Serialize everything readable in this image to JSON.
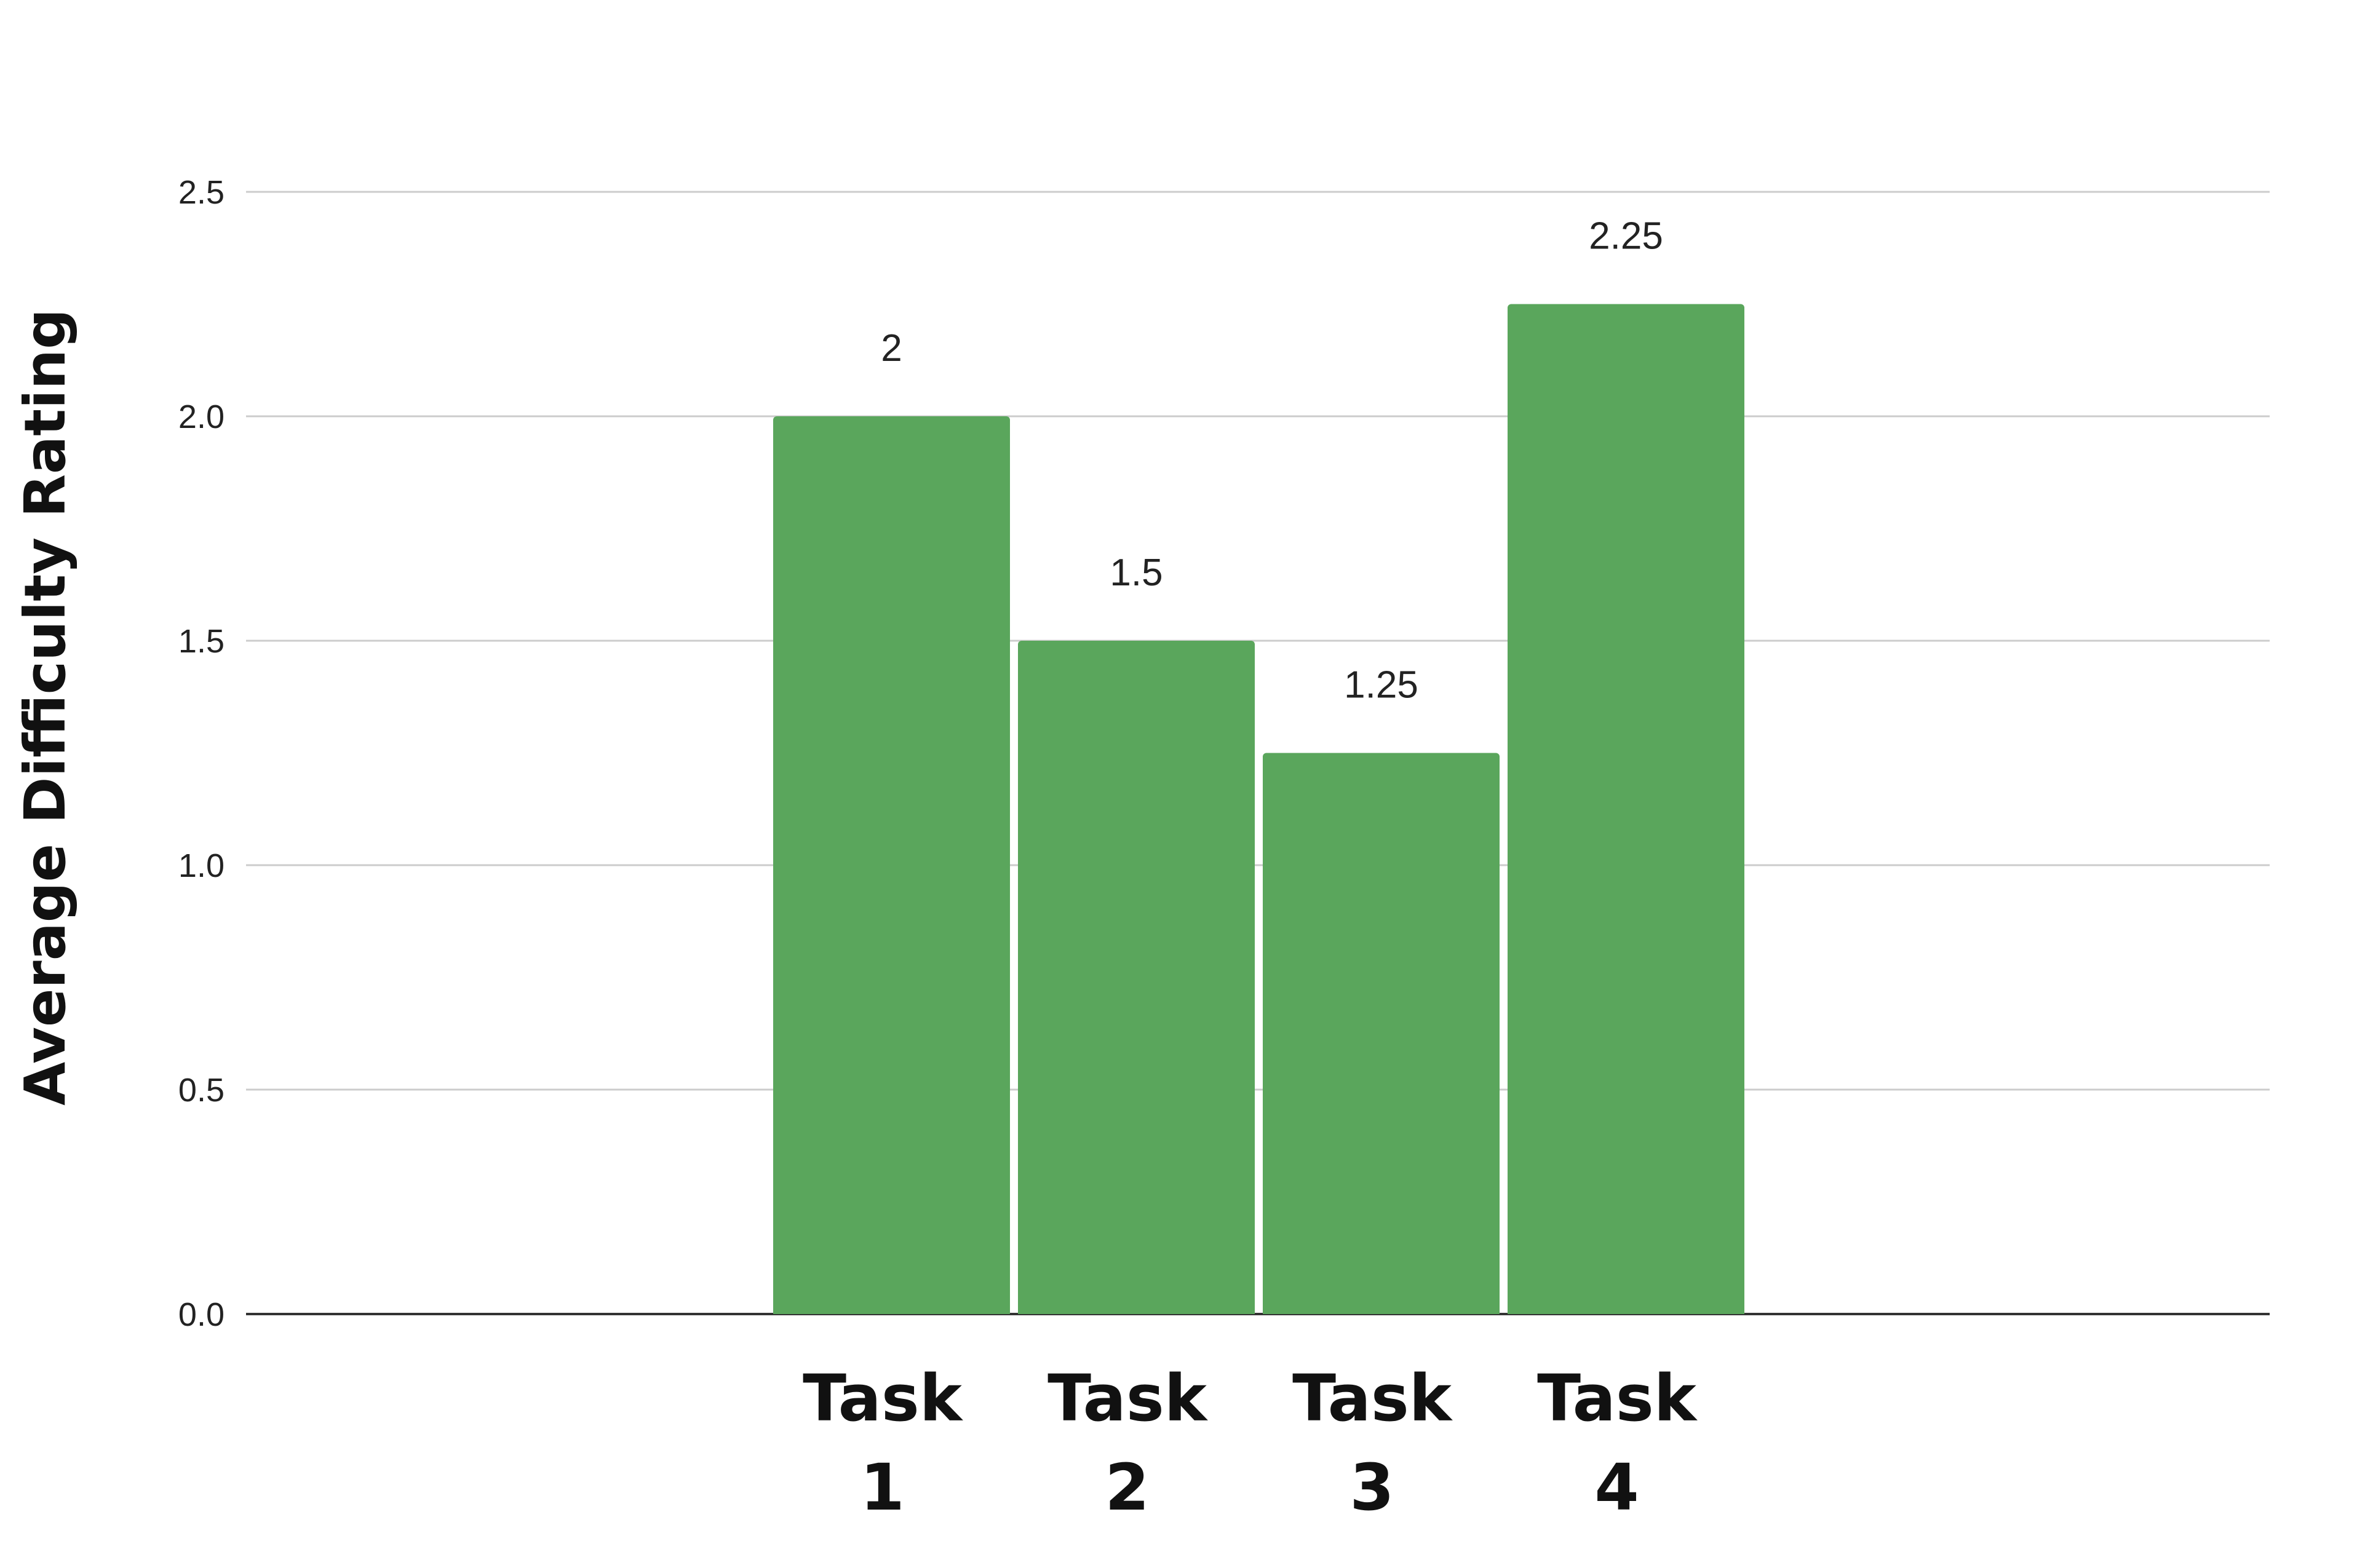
{
  "chart_data": {
    "type": "bar",
    "title": "",
    "xlabel": "",
    "ylabel": "Average Difficulty Rating",
    "categories": [
      "Task 1",
      "Task 2",
      "Task 3",
      "Task 4"
    ],
    "values": [
      2,
      1.5,
      1.25,
      2.25
    ],
    "value_labels": [
      "2",
      "1.5",
      "1.25",
      "2.25"
    ],
    "ylim": [
      0,
      2.5
    ],
    "yticks": [
      0,
      0.5,
      1,
      1.5,
      2,
      2.5
    ],
    "ytick_labels": [
      "0.0",
      "0.5",
      "1.0",
      "1.5",
      "2.0",
      "2.5"
    ],
    "grid": true,
    "legend": "none",
    "colors": {
      "bar": "#5aa65c",
      "grid": "#cccccc",
      "axis": "#333333"
    }
  }
}
